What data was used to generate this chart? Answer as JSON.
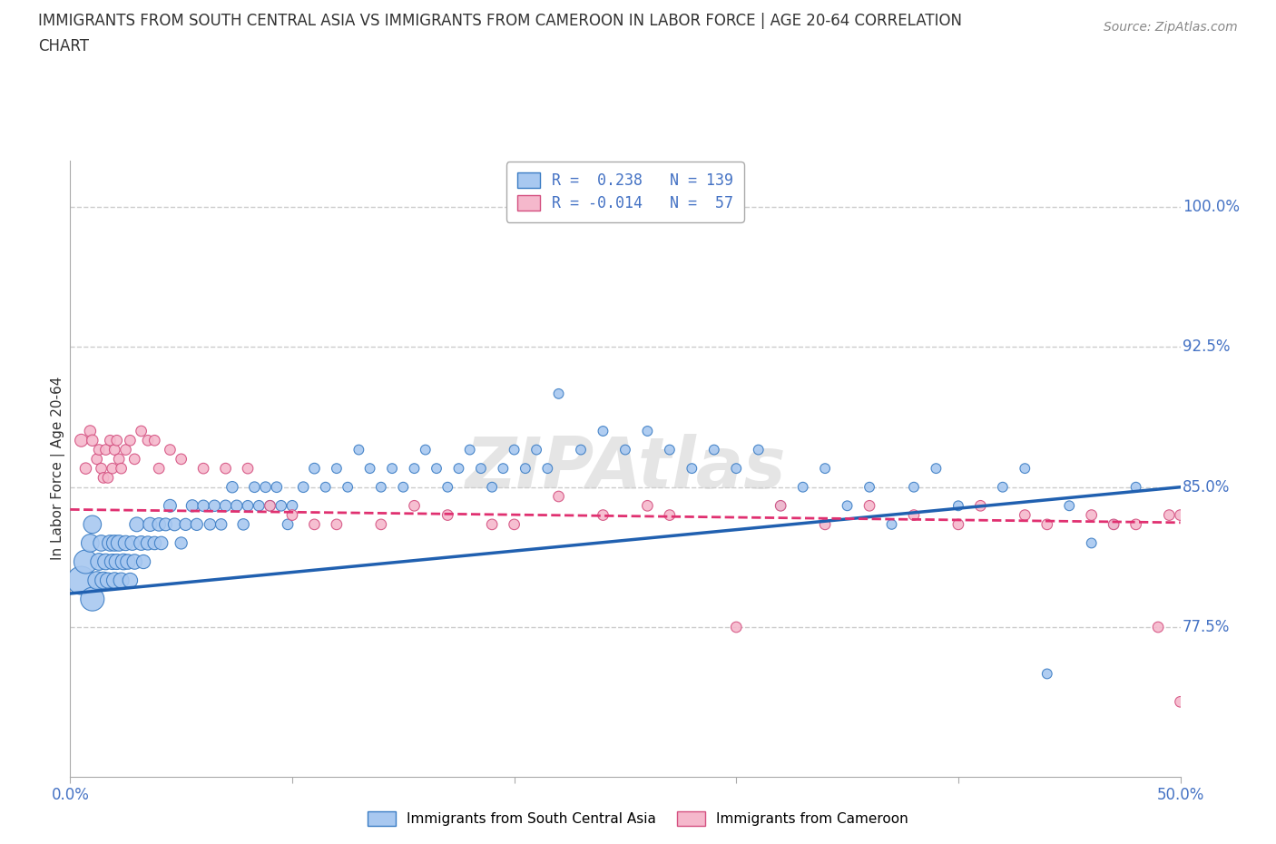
{
  "title_line1": "IMMIGRANTS FROM SOUTH CENTRAL ASIA VS IMMIGRANTS FROM CAMEROON IN LABOR FORCE | AGE 20-64 CORRELATION",
  "title_line2": "CHART",
  "source": "Source: ZipAtlas.com",
  "ylabel": "In Labor Force | Age 20-64",
  "xlim": [
    0.0,
    0.5
  ],
  "ylim": [
    0.695,
    1.025
  ],
  "ytick_positions": [
    0.775,
    0.85,
    0.925,
    1.0
  ],
  "yticklabels": [
    "77.5%",
    "85.0%",
    "92.5%",
    "100.0%"
  ],
  "blue_R": 0.238,
  "blue_N": 139,
  "pink_R": -0.014,
  "pink_N": 57,
  "blue_color": "#a8c8f0",
  "pink_color": "#f5b8cc",
  "blue_edge_color": "#3a7cc4",
  "pink_edge_color": "#d45080",
  "blue_line_color": "#2060b0",
  "pink_line_color": "#e03070",
  "tick_label_color": "#4472c4",
  "watermark": "ZIPAtlas",
  "legend_label_blue": "Immigrants from South Central Asia",
  "legend_label_pink": "Immigrants from Cameroon",
  "blue_scatter_x": [
    0.005,
    0.007,
    0.009,
    0.01,
    0.01,
    0.012,
    0.013,
    0.014,
    0.015,
    0.016,
    0.017,
    0.018,
    0.019,
    0.02,
    0.02,
    0.021,
    0.022,
    0.023,
    0.024,
    0.025,
    0.026,
    0.027,
    0.028,
    0.029,
    0.03,
    0.032,
    0.033,
    0.035,
    0.036,
    0.038,
    0.04,
    0.041,
    0.043,
    0.045,
    0.047,
    0.05,
    0.052,
    0.055,
    0.057,
    0.06,
    0.063,
    0.065,
    0.068,
    0.07,
    0.073,
    0.075,
    0.078,
    0.08,
    0.083,
    0.085,
    0.088,
    0.09,
    0.093,
    0.095,
    0.098,
    0.1,
    0.105,
    0.11,
    0.115,
    0.12,
    0.125,
    0.13,
    0.135,
    0.14,
    0.145,
    0.15,
    0.155,
    0.16,
    0.165,
    0.17,
    0.175,
    0.18,
    0.185,
    0.19,
    0.195,
    0.2,
    0.205,
    0.21,
    0.215,
    0.22,
    0.23,
    0.24,
    0.25,
    0.26,
    0.27,
    0.28,
    0.29,
    0.3,
    0.31,
    0.32,
    0.33,
    0.34,
    0.35,
    0.36,
    0.37,
    0.38,
    0.39,
    0.4,
    0.42,
    0.43,
    0.44,
    0.45,
    0.46,
    0.47,
    0.48
  ],
  "blue_scatter_y": [
    0.8,
    0.81,
    0.82,
    0.79,
    0.83,
    0.8,
    0.81,
    0.82,
    0.8,
    0.81,
    0.8,
    0.82,
    0.81,
    0.8,
    0.82,
    0.81,
    0.82,
    0.8,
    0.81,
    0.82,
    0.81,
    0.8,
    0.82,
    0.81,
    0.83,
    0.82,
    0.81,
    0.82,
    0.83,
    0.82,
    0.83,
    0.82,
    0.83,
    0.84,
    0.83,
    0.82,
    0.83,
    0.84,
    0.83,
    0.84,
    0.83,
    0.84,
    0.83,
    0.84,
    0.85,
    0.84,
    0.83,
    0.84,
    0.85,
    0.84,
    0.85,
    0.84,
    0.85,
    0.84,
    0.83,
    0.84,
    0.85,
    0.86,
    0.85,
    0.86,
    0.85,
    0.87,
    0.86,
    0.85,
    0.86,
    0.85,
    0.86,
    0.87,
    0.86,
    0.85,
    0.86,
    0.87,
    0.86,
    0.85,
    0.86,
    0.87,
    0.86,
    0.87,
    0.86,
    0.9,
    0.87,
    0.88,
    0.87,
    0.88,
    0.87,
    0.86,
    0.87,
    0.86,
    0.87,
    0.84,
    0.85,
    0.86,
    0.84,
    0.85,
    0.83,
    0.85,
    0.86,
    0.84,
    0.85,
    0.86,
    0.75,
    0.84,
    0.82,
    0.83,
    0.85
  ],
  "blue_scatter_size": [
    500,
    350,
    200,
    350,
    200,
    200,
    180,
    160,
    180,
    160,
    150,
    160,
    150,
    160,
    160,
    150,
    160,
    150,
    160,
    140,
    140,
    140,
    130,
    140,
    130,
    130,
    120,
    120,
    120,
    110,
    110,
    110,
    100,
    100,
    100,
    90,
    90,
    90,
    90,
    80,
    80,
    80,
    80,
    80,
    80,
    80,
    80,
    70,
    70,
    70,
    70,
    70,
    70,
    70,
    70,
    70,
    70,
    70,
    60,
    60,
    60,
    60,
    60,
    60,
    60,
    60,
    60,
    60,
    60,
    60,
    60,
    60,
    60,
    60,
    60,
    60,
    60,
    60,
    60,
    60,
    60,
    60,
    60,
    60,
    60,
    60,
    60,
    60,
    60,
    60,
    60,
    60,
    60,
    60,
    60,
    60,
    60,
    60,
    60,
    60,
    60,
    60,
    60,
    60,
    60
  ],
  "pink_scatter_x": [
    0.005,
    0.007,
    0.009,
    0.01,
    0.012,
    0.013,
    0.014,
    0.015,
    0.016,
    0.017,
    0.018,
    0.019,
    0.02,
    0.021,
    0.022,
    0.023,
    0.025,
    0.027,
    0.029,
    0.032,
    0.035,
    0.038,
    0.04,
    0.045,
    0.05,
    0.06,
    0.07,
    0.08,
    0.09,
    0.1,
    0.11,
    0.12,
    0.14,
    0.155,
    0.17,
    0.19,
    0.2,
    0.22,
    0.24,
    0.26,
    0.27,
    0.3,
    0.32,
    0.34,
    0.36,
    0.38,
    0.4,
    0.41,
    0.43,
    0.44,
    0.46,
    0.47,
    0.48,
    0.49,
    0.495,
    0.5,
    0.5
  ],
  "pink_scatter_y": [
    0.875,
    0.86,
    0.88,
    0.875,
    0.865,
    0.87,
    0.86,
    0.855,
    0.87,
    0.855,
    0.875,
    0.86,
    0.87,
    0.875,
    0.865,
    0.86,
    0.87,
    0.875,
    0.865,
    0.88,
    0.875,
    0.875,
    0.86,
    0.87,
    0.865,
    0.86,
    0.86,
    0.86,
    0.84,
    0.835,
    0.83,
    0.83,
    0.83,
    0.84,
    0.835,
    0.83,
    0.83,
    0.845,
    0.835,
    0.84,
    0.835,
    0.775,
    0.84,
    0.83,
    0.84,
    0.835,
    0.83,
    0.84,
    0.835,
    0.83,
    0.835,
    0.83,
    0.83,
    0.775,
    0.835,
    0.835,
    0.735
  ],
  "pink_scatter_size": [
    100,
    80,
    80,
    80,
    70,
    70,
    70,
    70,
    70,
    70,
    70,
    70,
    70,
    70,
    70,
    70,
    70,
    70,
    70,
    70,
    70,
    70,
    70,
    70,
    70,
    70,
    70,
    70,
    70,
    70,
    70,
    70,
    70,
    70,
    70,
    70,
    70,
    70,
    70,
    70,
    70,
    70,
    70,
    70,
    70,
    70,
    70,
    70,
    70,
    70,
    70,
    70,
    70,
    70,
    70,
    70,
    70
  ],
  "blue_trend_x0": 0.0,
  "blue_trend_x1": 0.5,
  "blue_trend_y0": 0.793,
  "blue_trend_y1": 0.85,
  "pink_trend_x0": 0.0,
  "pink_trend_x1": 0.5,
  "pink_trend_y0": 0.838,
  "pink_trend_y1": 0.831,
  "grid_color": "#cccccc",
  "bg_color": "#ffffff",
  "title_fontsize": 12,
  "axis_label_fontsize": 11,
  "tick_fontsize": 12,
  "legend_fontsize": 12
}
